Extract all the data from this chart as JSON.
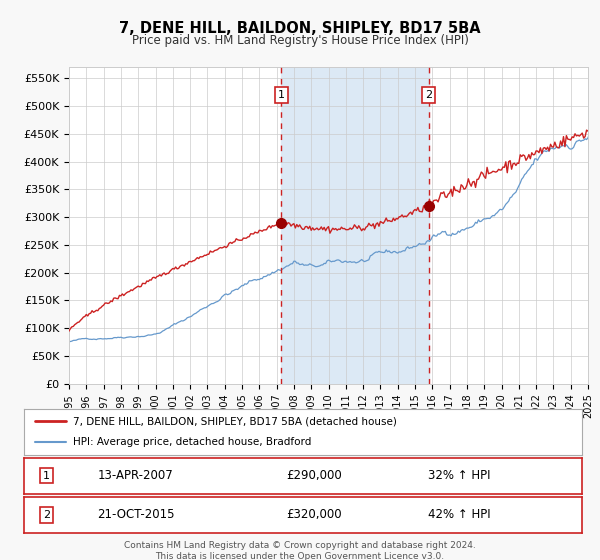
{
  "title": "7, DENE HILL, BAILDON, SHIPLEY, BD17 5BA",
  "subtitle": "Price paid vs. HM Land Registry's House Price Index (HPI)",
  "hpi_label": "HPI: Average price, detached house, Bradford",
  "property_label": "7, DENE HILL, BAILDON, SHIPLEY, BD17 5BA (detached house)",
  "sale1_date": "13-APR-2007",
  "sale1_price": "£290,000",
  "sale1_pct": "32% ↑ HPI",
  "sale1_year": 2007.28,
  "sale1_value": 290000,
  "sale2_date": "21-OCT-2015",
  "sale2_price": "£320,000",
  "sale2_pct": "42% ↑ HPI",
  "sale2_year": 2015.8,
  "sale2_value": 320000,
  "ylabel_ticks": [
    0,
    50000,
    100000,
    150000,
    200000,
    250000,
    300000,
    350000,
    400000,
    450000,
    500000,
    550000
  ],
  "ylabel_labels": [
    "£0",
    "£50K",
    "£100K",
    "£150K",
    "£200K",
    "£250K",
    "£300K",
    "£350K",
    "£400K",
    "£450K",
    "£500K",
    "£550K"
  ],
  "xmin": 1995,
  "xmax": 2025,
  "ymin": 0,
  "ymax": 570000,
  "background_color": "#f8f8f8",
  "plot_bg_color": "#ffffff",
  "shaded_region_color": "#dce9f5",
  "hpi_line_color": "#6699cc",
  "property_line_color": "#cc2222",
  "dashed_line_color": "#cc2222",
  "marker_color": "#990000",
  "footer_text1": "Contains HM Land Registry data © Crown copyright and database right 2024.",
  "footer_text2": "This data is licensed under the Open Government Licence v3.0."
}
